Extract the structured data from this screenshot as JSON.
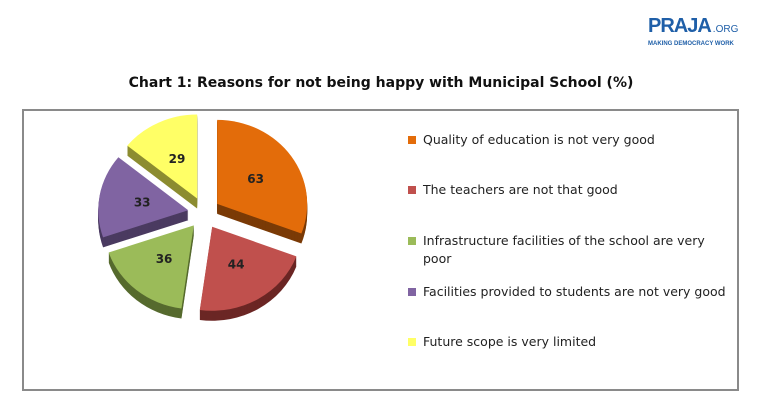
{
  "logo": {
    "main": "PRAJA",
    "suffix": ".ORG",
    "tagline": "MAKING DEMOCRACY WORK"
  },
  "chart_data": {
    "type": "pie",
    "title": "Chart 1: Reasons for not being happy with Municipal School (%)",
    "style": "3d-exploded",
    "legend_position": "right",
    "categories": [
      "Quality of education is not very good",
      "The teachers are not that good",
      "Infrastructure facilities of the school are very poor",
      "Facilities provided to students are not very good",
      "Future scope is very limited"
    ],
    "values": [
      63,
      44,
      36,
      33,
      29
    ],
    "colors": [
      "#e36c0a",
      "#c0504d",
      "#9bbb59",
      "#8064a2",
      "#ffff66"
    ],
    "side_colors": [
      "#7a3a06",
      "#6b2624",
      "#566a2e",
      "#4a3a60",
      "#8c8c30"
    ]
  }
}
